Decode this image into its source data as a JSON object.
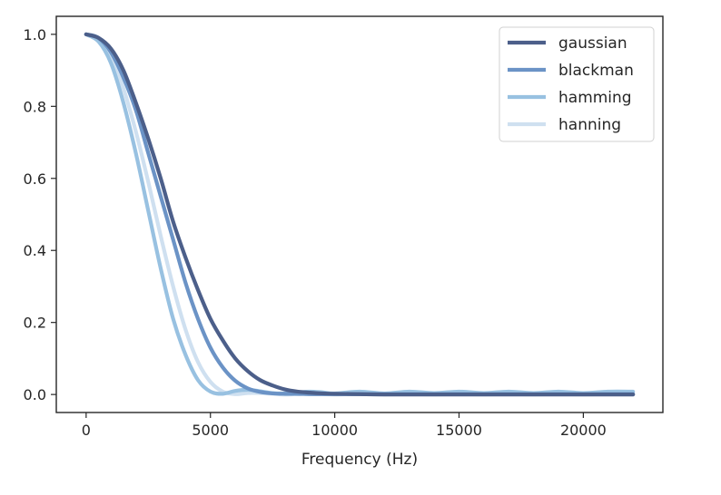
{
  "chart_data": {
    "type": "line",
    "title": "",
    "xlabel": "Frequency (Hz)",
    "ylabel": "",
    "xlim": [
      -1200,
      23200
    ],
    "ylim": [
      -0.05,
      1.05
    ],
    "xticks": [
      0,
      5000,
      10000,
      15000,
      20000
    ],
    "xtick_labels": [
      "0",
      "5000",
      "10000",
      "15000",
      "20000"
    ],
    "yticks": [
      0.0,
      0.2,
      0.4,
      0.6,
      0.8,
      1.0
    ],
    "ytick_labels": [
      "0.0",
      "0.2",
      "0.4",
      "0.6",
      "0.8",
      "1.0"
    ],
    "grid": false,
    "legend_position": "top-right",
    "x": [
      0,
      500,
      1000,
      1500,
      2000,
      2500,
      3000,
      3500,
      4000,
      4500,
      5000,
      5500,
      6000,
      6500,
      7000,
      7500,
      8000,
      8500,
      9000,
      9500,
      10000,
      11000,
      12000,
      13000,
      14000,
      15000,
      16000,
      17000,
      18000,
      19000,
      20000,
      21000,
      22000
    ],
    "series": [
      {
        "name": "gaussian",
        "color": "#4c5f8a",
        "values": [
          1.0,
          0.99,
          0.96,
          0.9,
          0.81,
          0.71,
          0.6,
          0.48,
          0.38,
          0.29,
          0.21,
          0.15,
          0.1,
          0.065,
          0.04,
          0.025,
          0.014,
          0.008,
          0.005,
          0.003,
          0.002,
          0.001,
          0.0,
          0.0,
          0.0,
          0.0,
          0.0,
          0.0,
          0.0,
          0.0,
          0.0,
          0.0,
          0.0
        ]
      },
      {
        "name": "blackman",
        "color": "#6b93c6",
        "values": [
          1.0,
          0.99,
          0.95,
          0.88,
          0.79,
          0.67,
          0.55,
          0.43,
          0.31,
          0.21,
          0.13,
          0.075,
          0.038,
          0.017,
          0.007,
          0.003,
          0.002,
          0.002,
          0.001,
          0.001,
          0.001,
          0.001,
          0.001,
          0.001,
          0.001,
          0.001,
          0.001,
          0.001,
          0.001,
          0.001,
          0.001,
          0.001,
          0.001
        ]
      },
      {
        "name": "hamming",
        "color": "#98c1e1",
        "values": [
          1.0,
          0.98,
          0.92,
          0.81,
          0.67,
          0.51,
          0.35,
          0.21,
          0.11,
          0.04,
          0.008,
          0.002,
          0.01,
          0.013,
          0.009,
          0.004,
          0.003,
          0.006,
          0.008,
          0.006,
          0.003,
          0.008,
          0.003,
          0.008,
          0.004,
          0.008,
          0.004,
          0.008,
          0.004,
          0.008,
          0.004,
          0.008,
          0.008
        ]
      },
      {
        "name": "hanning",
        "color": "#cfe0f0",
        "values": [
          1.0,
          0.985,
          0.94,
          0.85,
          0.73,
          0.59,
          0.44,
          0.3,
          0.18,
          0.09,
          0.035,
          0.008,
          0.001,
          0.004,
          0.004,
          0.002,
          0.0,
          0.001,
          0.002,
          0.001,
          0.0,
          0.001,
          0.0,
          0.001,
          0.0,
          0.001,
          0.0,
          0.001,
          0.0,
          0.001,
          0.0,
          0.001,
          0.0
        ]
      }
    ]
  }
}
